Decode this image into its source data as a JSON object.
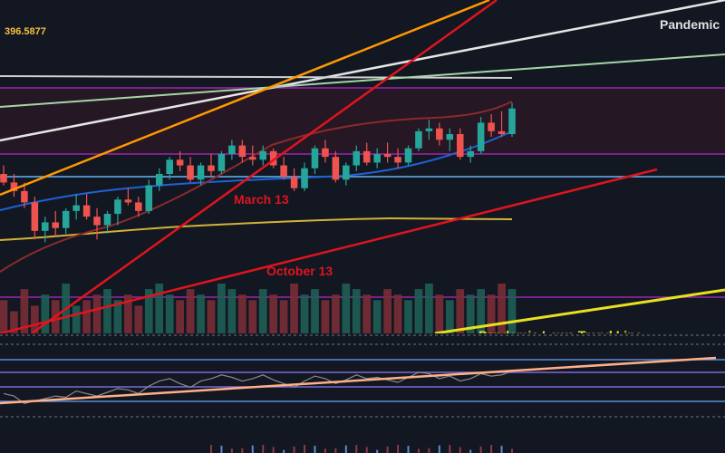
{
  "price_label": "396.5877",
  "annotations": {
    "march": "March 13",
    "october": "October 13",
    "pandemic_top": "Pandemic",
    "pandemic_bottom": "Pandemic Lows Trend Line"
  },
  "colors": {
    "background": "#131722",
    "up": "#26a69a",
    "down": "#ef5350",
    "orange": "#ff9800",
    "red": "#e0141e",
    "yellow": "#e8e020",
    "white": "#e6e6e6",
    "green_line": "#a5d6a7",
    "purple": "#9c27b0",
    "blue_line": "#64b5f6",
    "ma_blue": "#1e63d6",
    "ma_yellow": "#d4b13a",
    "ma_red": "#8b2a2a",
    "rsi_line": "#ffb088"
  },
  "chart_data": {
    "type": "candlestick",
    "title": "",
    "xlabel": "",
    "ylabel": "",
    "ylim": [
      340,
      410
    ],
    "candles": [
      [
        368,
        371,
        364,
        365
      ],
      [
        365,
        368,
        360,
        362
      ],
      [
        362,
        365,
        356,
        358
      ],
      [
        358,
        360,
        345,
        348
      ],
      [
        348,
        353,
        344,
        351
      ],
      [
        351,
        355,
        346,
        349
      ],
      [
        349,
        356,
        347,
        355
      ],
      [
        355,
        361,
        352,
        357
      ],
      [
        357,
        361,
        352,
        353
      ],
      [
        353,
        356,
        345,
        350
      ],
      [
        350,
        355,
        347,
        354
      ],
      [
        354,
        360,
        350,
        359
      ],
      [
        359,
        363,
        357,
        358
      ],
      [
        358,
        360,
        353,
        355
      ],
      [
        355,
        366,
        354,
        364
      ],
      [
        364,
        370,
        362,
        368
      ],
      [
        368,
        374,
        366,
        373
      ],
      [
        373,
        376,
        369,
        371
      ],
      [
        371,
        374,
        365,
        366
      ],
      [
        366,
        372,
        364,
        371
      ],
      [
        371,
        375,
        367,
        369
      ],
      [
        369,
        376,
        368,
        375
      ],
      [
        375,
        380,
        373,
        378
      ],
      [
        378,
        380,
        372,
        374
      ],
      [
        374,
        378,
        371,
        373
      ],
      [
        373,
        378,
        371,
        376
      ],
      [
        376,
        377,
        370,
        371
      ],
      [
        371,
        374,
        366,
        367
      ],
      [
        367,
        370,
        362,
        363
      ],
      [
        363,
        372,
        362,
        370
      ],
      [
        370,
        378,
        368,
        377
      ],
      [
        377,
        380,
        372,
        374
      ],
      [
        374,
        376,
        365,
        366
      ],
      [
        366,
        372,
        364,
        371
      ],
      [
        371,
        378,
        369,
        376
      ],
      [
        376,
        379,
        371,
        372
      ],
      [
        372,
        377,
        370,
        375
      ],
      [
        375,
        379,
        372,
        374
      ],
      [
        374,
        377,
        370,
        372
      ],
      [
        372,
        378,
        371,
        377
      ],
      [
        377,
        384,
        376,
        383
      ],
      [
        383,
        387,
        380,
        384
      ],
      [
        384,
        386,
        378,
        380
      ],
      [
        380,
        384,
        376,
        382
      ],
      [
        382,
        384,
        373,
        374
      ],
      [
        374,
        378,
        372,
        376
      ],
      [
        376,
        388,
        375,
        386
      ],
      [
        386,
        389,
        381,
        383
      ],
      [
        383,
        390,
        381,
        382
      ],
      [
        382,
        393,
        381,
        391
      ]
    ],
    "volume": [
      6,
      4,
      8,
      5,
      7,
      6,
      9,
      5,
      6,
      7,
      8,
      6,
      7,
      5,
      8,
      9,
      7,
      6,
      8,
      7,
      6,
      9,
      8,
      7,
      6,
      8,
      7,
      6,
      9,
      7,
      8,
      6,
      7,
      9,
      8,
      7,
      6,
      8,
      7,
      6,
      8,
      9,
      7,
      6,
      8,
      7,
      8,
      7,
      9,
      8
    ],
    "rsi": [
      40,
      38,
      32,
      34,
      36,
      38,
      37,
      42,
      40,
      38,
      41,
      44,
      43,
      40,
      46,
      50,
      52,
      48,
      45,
      50,
      52,
      55,
      53,
      50,
      52,
      55,
      51,
      48,
      45,
      50,
      54,
      52,
      48,
      51,
      55,
      52,
      53,
      51,
      49,
      53,
      57,
      56,
      52,
      54,
      50,
      52,
      56,
      54,
      55,
      58
    ]
  }
}
